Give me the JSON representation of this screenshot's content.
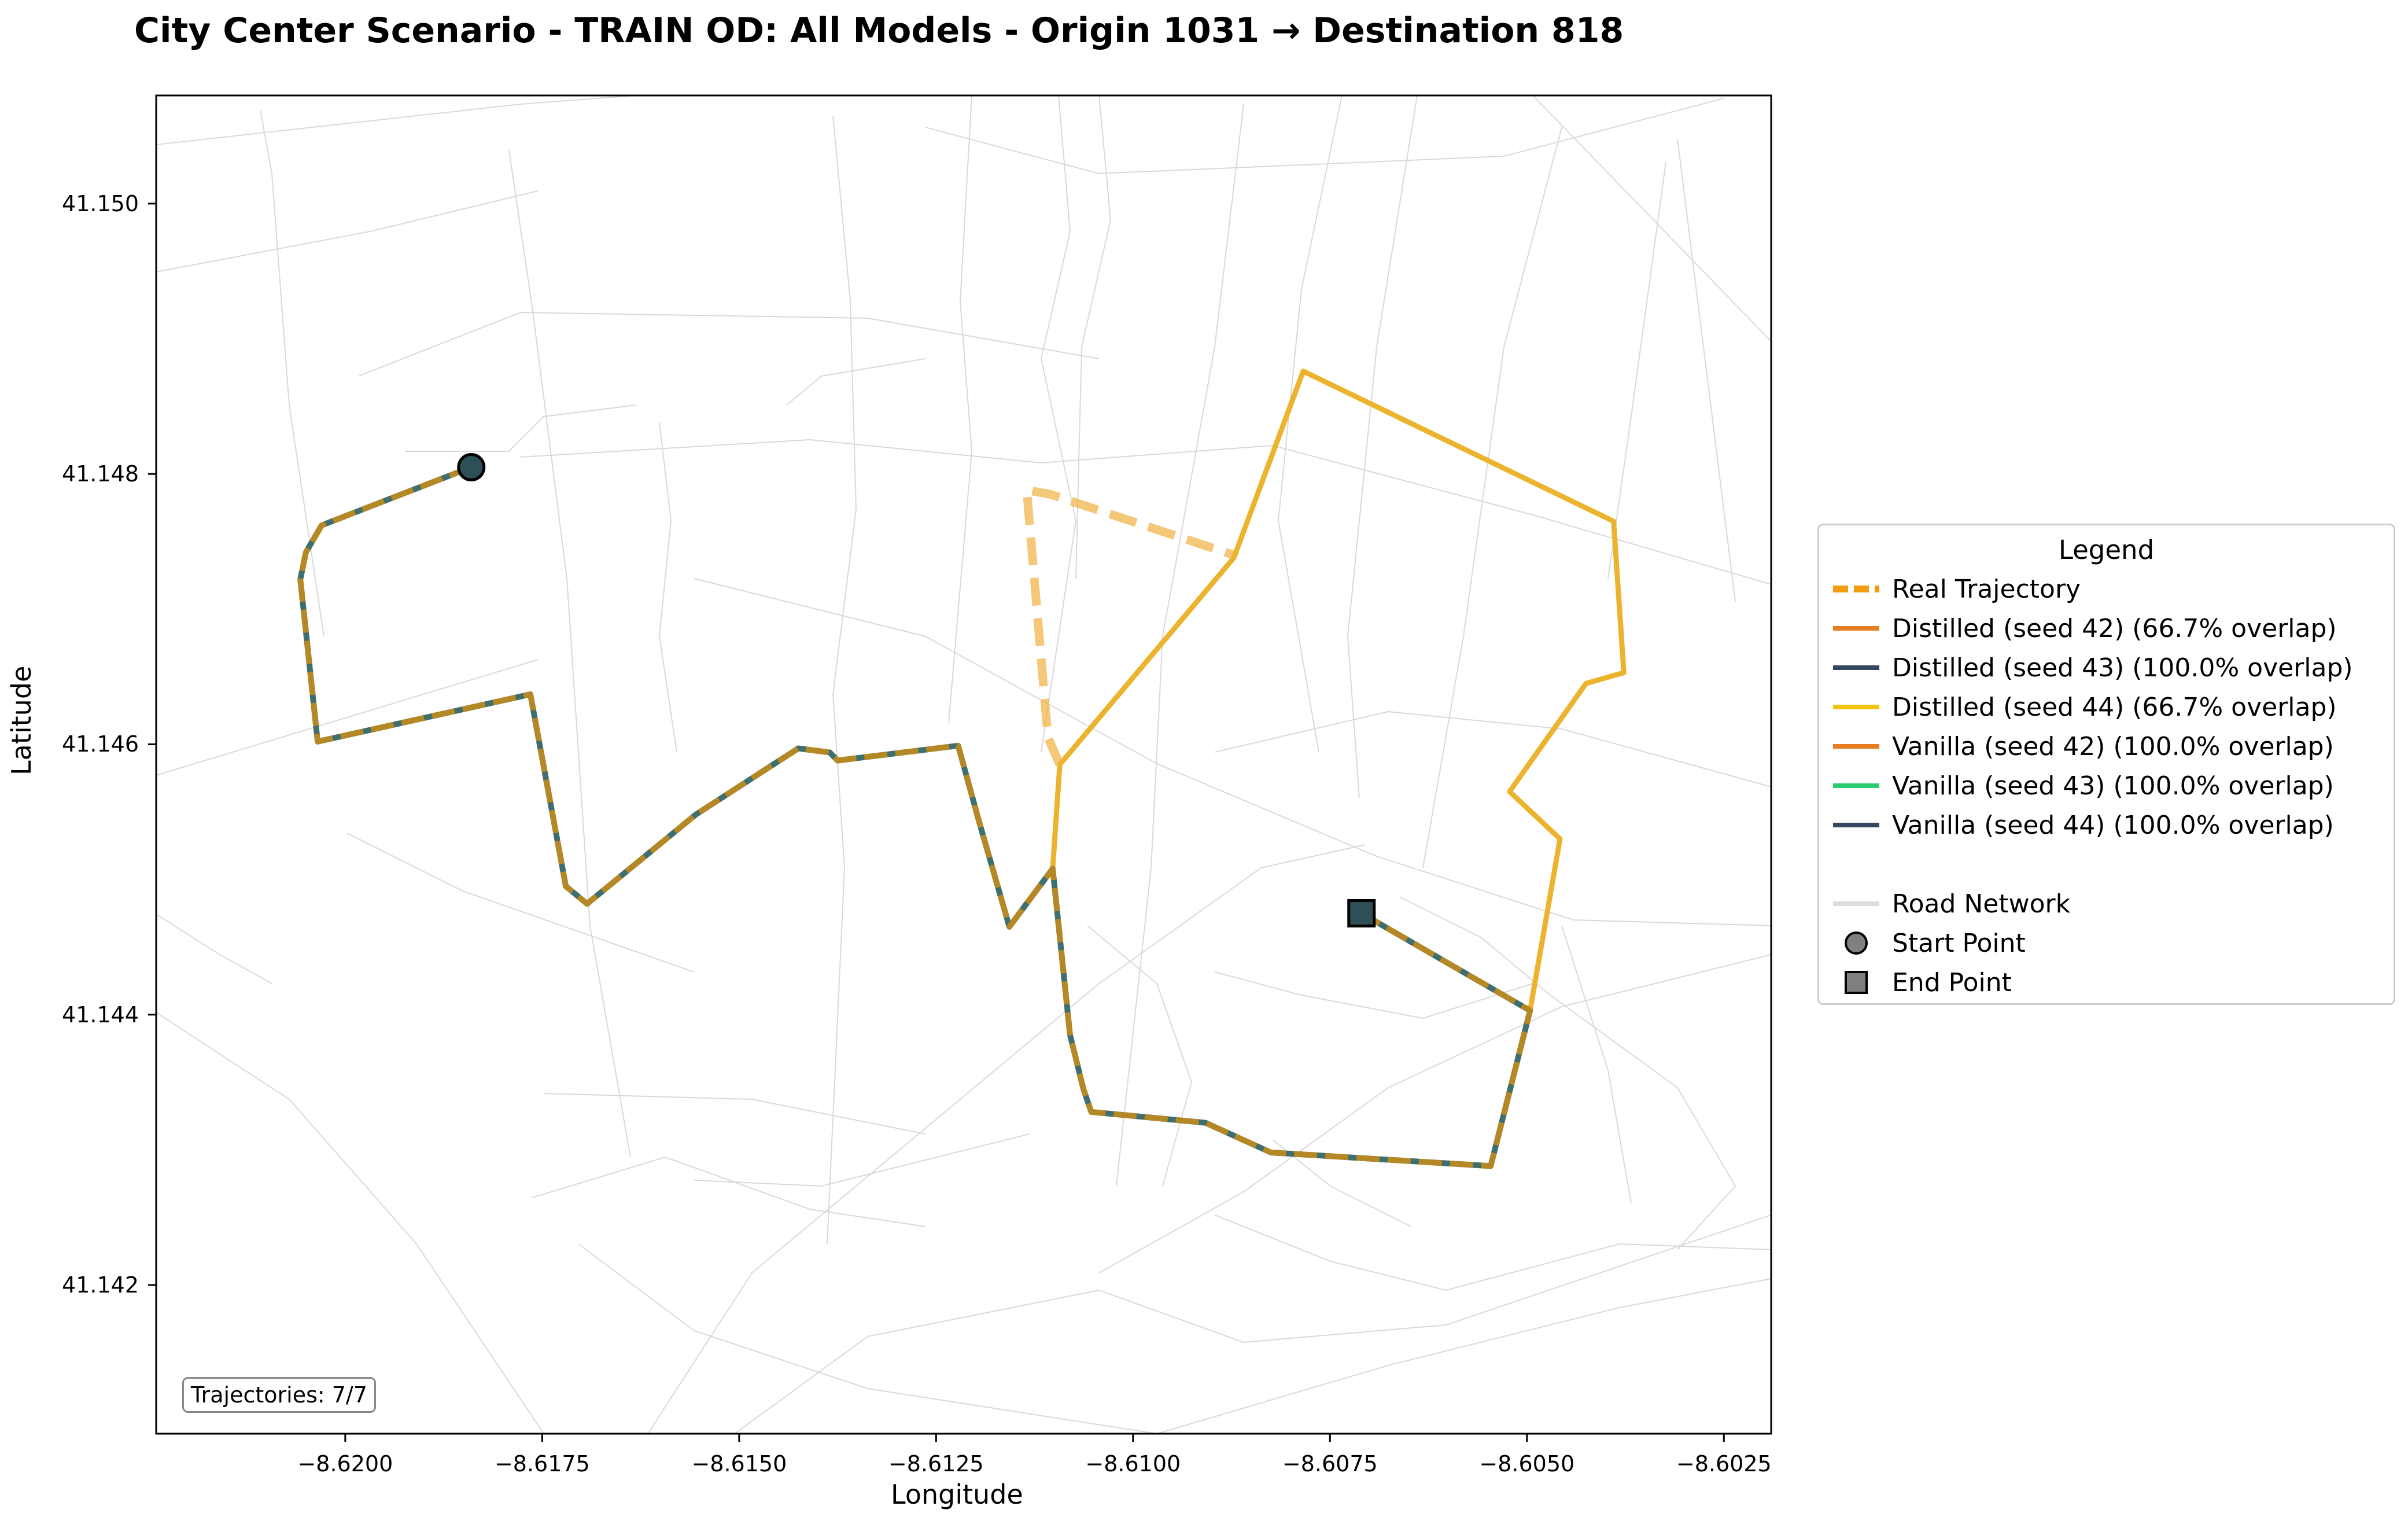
{
  "chart_data": {
    "type": "map-route",
    "title": "City Center Scenario - TRAIN OD: All Models - Origin 1031 → Destination 818",
    "xlabel": "Longitude",
    "ylabel": "Latitude",
    "xlim": [
      -8.6224,
      -8.6019
    ],
    "ylim": [
      41.1409,
      41.1508
    ],
    "x_ticks": [
      -8.62,
      -8.6175,
      -8.615,
      -8.6125,
      -8.61,
      -8.6075,
      -8.605,
      -8.6025
    ],
    "x_tick_labels": [
      "−8.6200",
      "−8.6175",
      "−8.6150",
      "−8.6125",
      "−8.6100",
      "−8.6075",
      "−8.6050",
      "−8.6025"
    ],
    "y_ticks": [
      41.142,
      41.144,
      41.146,
      41.148,
      41.15
    ],
    "y_tick_labels": [
      "41.142",
      "41.144",
      "41.146",
      "41.148",
      "41.150"
    ],
    "start_point": [
      -8.6184,
      41.14805
    ],
    "end_point": [
      -8.6071,
      41.14475
    ],
    "routes": {
      "common": [
        [
          -8.6184,
          41.14805
        ],
        [
          -8.6203,
          41.14762
        ],
        [
          -8.6205,
          41.14742
        ],
        [
          -8.62057,
          41.14722
        ],
        [
          -8.62035,
          41.14602
        ],
        [
          -8.61765,
          41.14637
        ],
        [
          -8.6172,
          41.14495
        ],
        [
          -8.61693,
          41.14482
        ],
        [
          -8.61555,
          41.14548
        ],
        [
          -8.61425,
          41.14597
        ],
        [
          -8.61385,
          41.14594
        ],
        [
          -8.61375,
          41.14588
        ],
        [
          -8.61222,
          41.14599
        ],
        [
          -8.61195,
          41.14542
        ],
        [
          -8.61157,
          41.14465
        ],
        [
          -8.61102,
          41.14508
        ],
        [
          -8.6108,
          41.14385
        ],
        [
          -8.61063,
          41.14345
        ],
        [
          -8.61053,
          41.14328
        ],
        [
          -8.60908,
          41.1432
        ],
        [
          -8.60825,
          41.14298
        ],
        [
          -8.60546,
          41.14288
        ],
        [
          -8.60496,
          41.14403
        ],
        [
          -8.6071,
          41.14475
        ]
      ],
      "seed44_extra": [
        [
          -8.61102,
          41.14508
        ],
        [
          -8.61093,
          41.14585
        ],
        [
          -8.60872,
          41.14738
        ],
        [
          -8.60784,
          41.14876
        ],
        [
          -8.6039,
          41.14765
        ],
        [
          -8.60377,
          41.14653
        ],
        [
          -8.60425,
          41.14645
        ],
        [
          -8.60522,
          41.14565
        ],
        [
          -8.60458,
          41.1453
        ],
        [
          -8.60496,
          41.14403
        ]
      ],
      "real_extra": [
        [
          -8.61093,
          41.14585
        ],
        [
          -8.61108,
          41.14605
        ],
        [
          -8.61135,
          41.14788
        ],
        [
          -8.61105,
          41.14785
        ],
        [
          -8.60872,
          41.1474
        ]
      ]
    },
    "legend_title": "Legend",
    "legend": [
      {
        "label": "Real Trajectory",
        "style": "dashed",
        "color": "#f39c12"
      },
      {
        "label": "Distilled (seed 42) (66.7% overlap)",
        "style": "line",
        "color": "#e67e22"
      },
      {
        "label": "Distilled (seed 43) (100.0% overlap)",
        "style": "line",
        "color": "#34495e"
      },
      {
        "label": "Distilled (seed 44) (66.7% overlap)",
        "style": "line",
        "color": "#f1c40f"
      },
      {
        "label": "Vanilla (seed 42) (100.0% overlap)",
        "style": "line",
        "color": "#e67e22"
      },
      {
        "label": "Vanilla (seed 43) (100.0% overlap)",
        "style": "line",
        "color": "#2ecc71"
      },
      {
        "label": "Vanilla (seed 44) (100.0% overlap)",
        "style": "line",
        "color": "#34495e"
      },
      {
        "label": "",
        "style": "blank",
        "color": ""
      },
      {
        "label": "Road Network",
        "style": "road",
        "color": "#dddddd"
      },
      {
        "label": "Start Point",
        "style": "circle",
        "color": "#808080"
      },
      {
        "label": "End Point",
        "style": "square",
        "color": "#808080"
      }
    ],
    "annotation": "Trajectories: 7/7",
    "grid": false
  }
}
